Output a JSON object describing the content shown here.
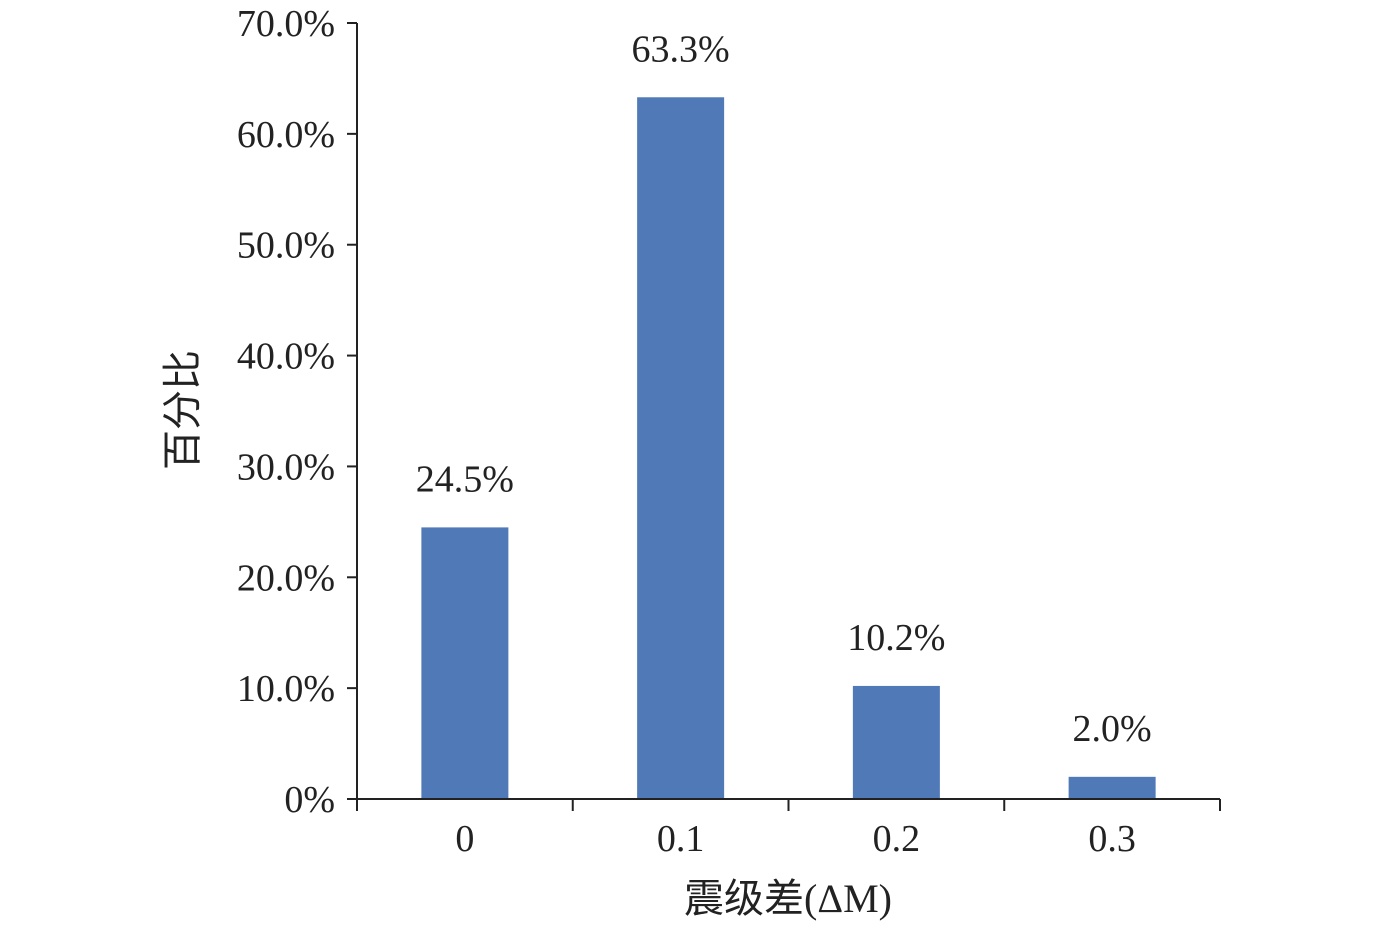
{
  "chart_data": {
    "type": "bar",
    "title": "",
    "xlabel": "震级差(ΔM)",
    "ylabel": "百分比",
    "categories": [
      "0",
      "0.1",
      "0.2",
      "0.3"
    ],
    "values": [
      24.5,
      63.3,
      10.2,
      2.0
    ],
    "data_labels": [
      "24.5%",
      "63.3%",
      "10.2%",
      "2.0%"
    ],
    "ylim": [
      0,
      70
    ],
    "yticks": [
      0,
      10,
      20,
      30,
      40,
      50,
      60,
      70
    ],
    "ytick_labels": [
      "0%",
      "10.0%",
      "20.0%",
      "30.0%",
      "40.0%",
      "50.0%",
      "60.0%",
      "70.0%"
    ],
    "grid": false,
    "legend": "none",
    "colors": {
      "bar": "#4f79b7",
      "axis": "#222222"
    }
  }
}
